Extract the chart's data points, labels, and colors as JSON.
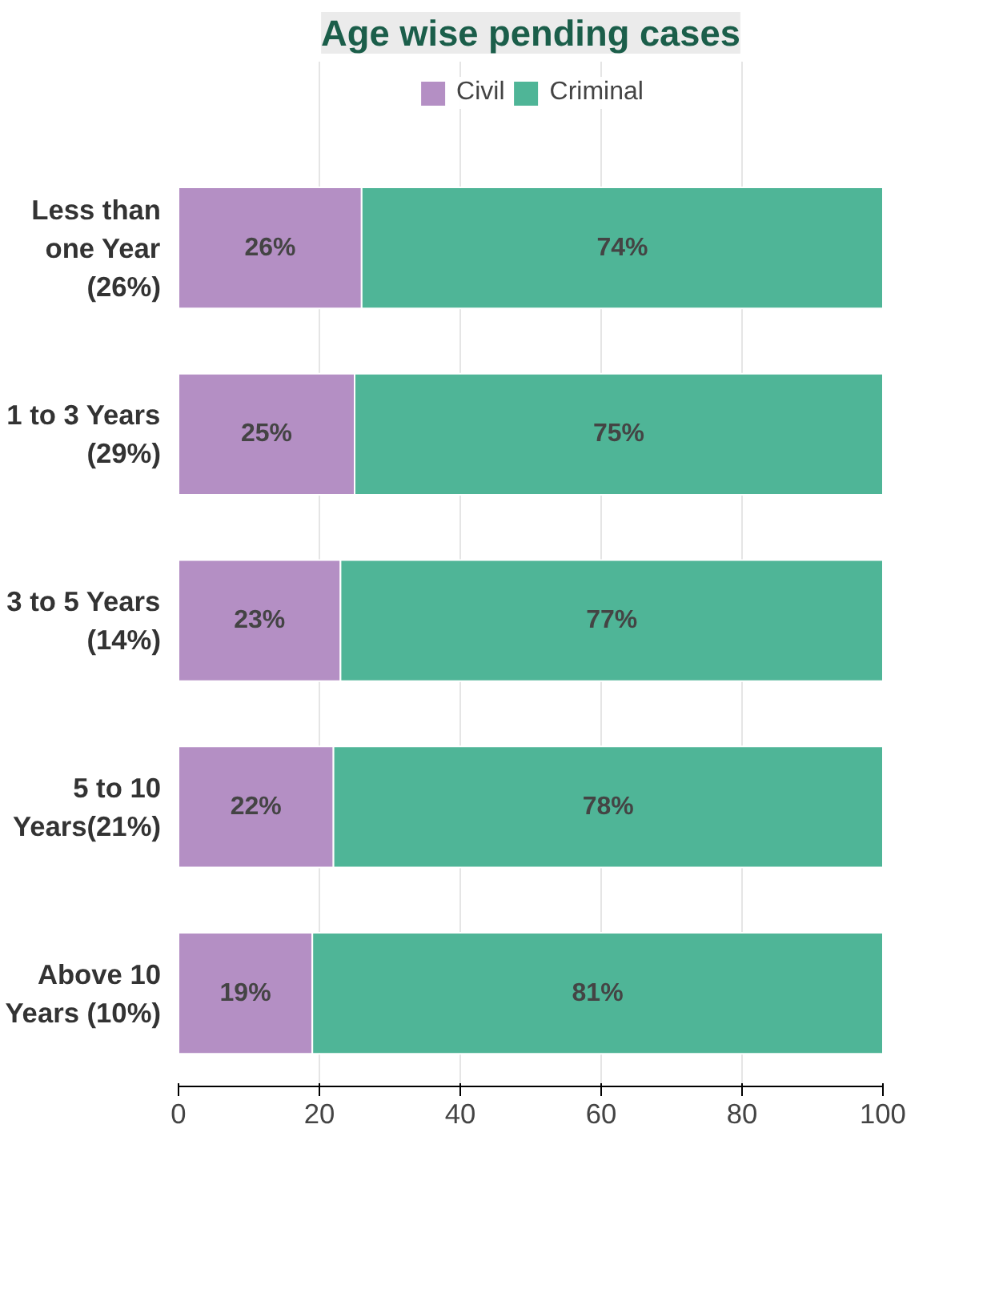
{
  "chart_data": {
    "type": "bar",
    "orientation": "horizontal",
    "stacked": true,
    "title": "Age wise pending cases",
    "categories": [
      "Less than one Year (26%)",
      "1 to 3 Years (29%)",
      "3 to 5 Years (14%)",
      "5 to 10 Years(21%)",
      "Above 10 Years (10%)"
    ],
    "series": [
      {
        "name": "Civil",
        "color": "#b48fc4",
        "values": [
          26,
          25,
          23,
          22,
          19
        ],
        "value_labels": [
          "26%",
          "25%",
          "23%",
          "22%",
          "19%"
        ]
      },
      {
        "name": "Criminal",
        "color": "#4fb597",
        "values": [
          74,
          75,
          77,
          78,
          81
        ],
        "value_labels": [
          "74%",
          "75%",
          "77%",
          "78%",
          "81%"
        ]
      }
    ],
    "xlim": [
      0,
      100
    ],
    "xticks": [
      0,
      20,
      40,
      60,
      80,
      100
    ],
    "grid": "x",
    "legend": "top"
  }
}
